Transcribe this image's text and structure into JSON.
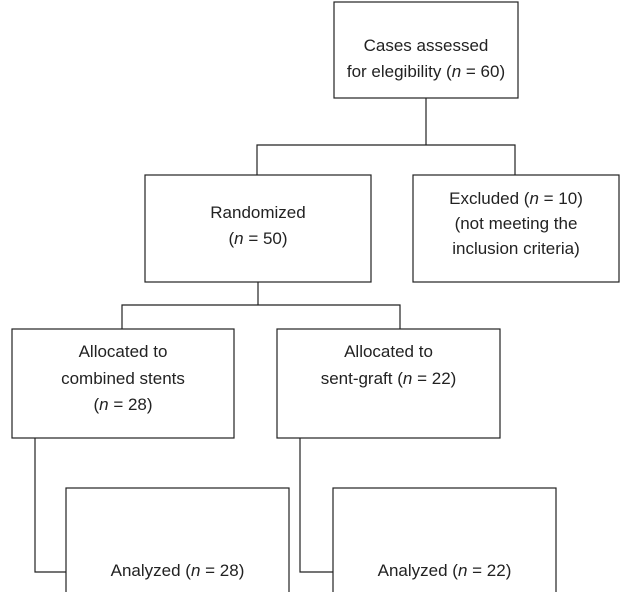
{
  "nodes": [
    {
      "lines": [
        [
          "Cases assessed"
        ],
        [
          "for elegibility (",
          "n",
          " = 60)"
        ]
      ]
    },
    {
      "lines": [
        [
          "Randomized"
        ],
        [
          "(",
          "n",
          " = 50)"
        ]
      ]
    },
    {
      "lines": [
        [
          "Excluded (",
          "n",
          " = 10)"
        ],
        [
          "(not meeting the"
        ],
        [
          "inclusion criteria)"
        ]
      ]
    },
    {
      "lines": [
        [
          "Allocated to"
        ],
        [
          "combined stents"
        ],
        [
          "(",
          "n",
          " = 28)"
        ]
      ]
    },
    {
      "lines": [
        [
          "Allocated to"
        ],
        [
          "sent-graft (",
          "n",
          " = 22)"
        ]
      ]
    },
    {
      "lines": [
        [
          "Analyzed (",
          "n",
          " = 28)"
        ]
      ]
    },
    {
      "lines": [
        [
          "Analyzed (",
          "n",
          " = 22)"
        ]
      ]
    }
  ]
}
